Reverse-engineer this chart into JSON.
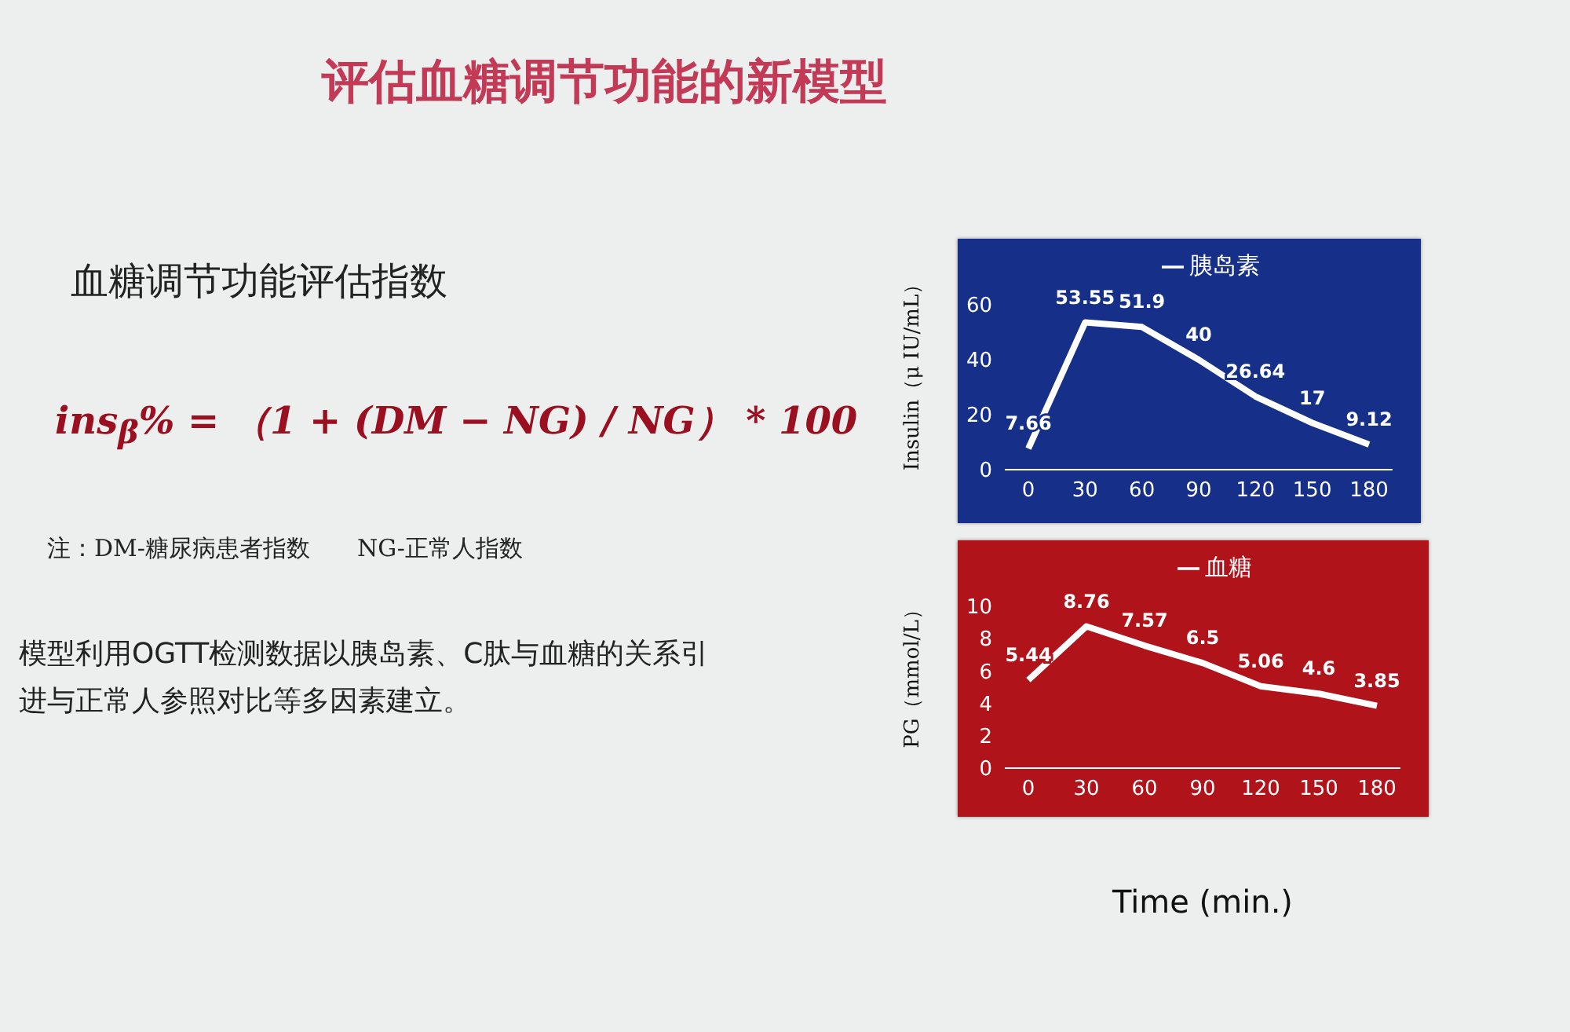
{
  "chart_data": [
    {
      "type": "other",
      "title": "评估血糖调节功能的新模型",
      "subtitle": "血糖调节功能评估指数",
      "annotations": [
        "ins$_{β}$% = （1 + (DM − NG) / NG） * 100",
        "注：DM-糖尿病患者指数　　NG-正常人指数",
        "模型利用OGTT检测数据以胰岛素、C肽与血糖的关系引进与正常人参照对比等多因素建立。"
      ]
    },
    {
      "type": "line",
      "ylabel": "Insulin（μ IU/mL）",
      "categories": [
        "0",
        "30",
        "60",
        "90",
        "120",
        "150",
        "180"
      ],
      "series": [
        {
          "name": "胰岛素",
          "color": "#ffffff",
          "values": [
            7.66,
            53.55,
            51.9,
            40,
            26.64,
            17,
            9.12
          ]
        }
      ],
      "ylim": [
        0,
        60
      ],
      "yticks": [
        0,
        20,
        40,
        60
      ],
      "data_labels": true,
      "legend": "top",
      "marker": "none",
      "line_style": "solid"
    },
    {
      "type": "line",
      "ylabel": "PG（mmol/L）",
      "xlabel": "Time (min.)",
      "categories": [
        "0",
        "30",
        "60",
        "90",
        "120",
        "150",
        "180"
      ],
      "series": [
        {
          "name": "血糖",
          "color": "#ffffff",
          "values": [
            5.44,
            8.76,
            7.57,
            6.5,
            5.06,
            4.6,
            3.85
          ]
        }
      ],
      "ylim": [
        0,
        10
      ],
      "yticks": [
        0,
        2,
        4,
        6,
        8,
        10
      ],
      "data_labels": true,
      "legend": "top",
      "marker": "none",
      "line_style": "solid"
    }
  ]
}
